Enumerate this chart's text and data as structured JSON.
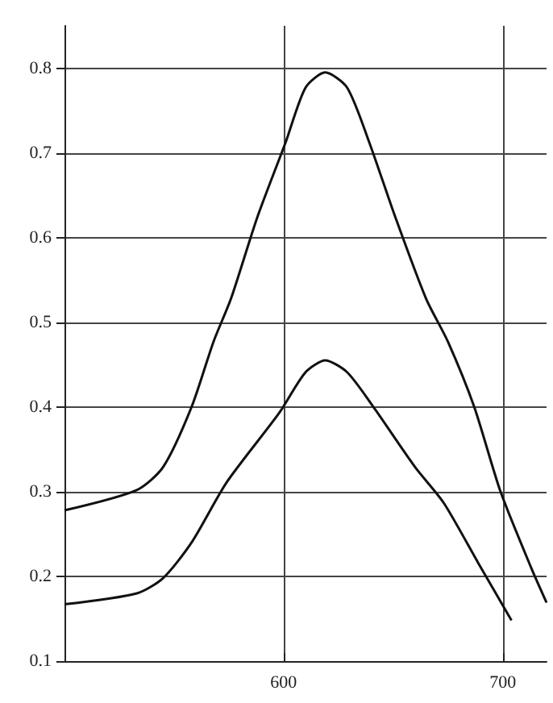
{
  "chart_data": {
    "type": "line",
    "xlim": [
      500,
      720
    ],
    "xticks": [
      600,
      700
    ],
    "ylim": [
      0.1,
      0.85
    ],
    "yticks": [
      0.1,
      0.2,
      0.3,
      0.4,
      0.5,
      0.6,
      0.7,
      0.8
    ],
    "grid": true,
    "marker": "none",
    "line_style": "solid",
    "series": [
      {
        "color": "#111111",
        "x": [
          500,
          533,
          545,
          558,
          568,
          576,
          588,
          601,
          610,
          619,
          629,
          639,
          651,
          665,
          675,
          687,
          699,
          713,
          720
        ],
        "values": [
          0.278,
          0.302,
          0.329,
          0.4,
          0.477,
          0.528,
          0.624,
          0.713,
          0.777,
          0.795,
          0.777,
          0.713,
          0.624,
          0.528,
          0.477,
          0.4,
          0.3,
          0.21,
          0.169
        ]
      },
      {
        "color": "#111111",
        "x": [
          500,
          533,
          545,
          558,
          574,
          598,
          610,
          619,
          629,
          641,
          660,
          673,
          689,
          704
        ],
        "values": [
          0.167,
          0.18,
          0.198,
          0.24,
          0.311,
          0.393,
          0.441,
          0.455,
          0.441,
          0.4,
          0.329,
          0.287,
          0.215,
          0.148
        ]
      }
    ]
  }
}
